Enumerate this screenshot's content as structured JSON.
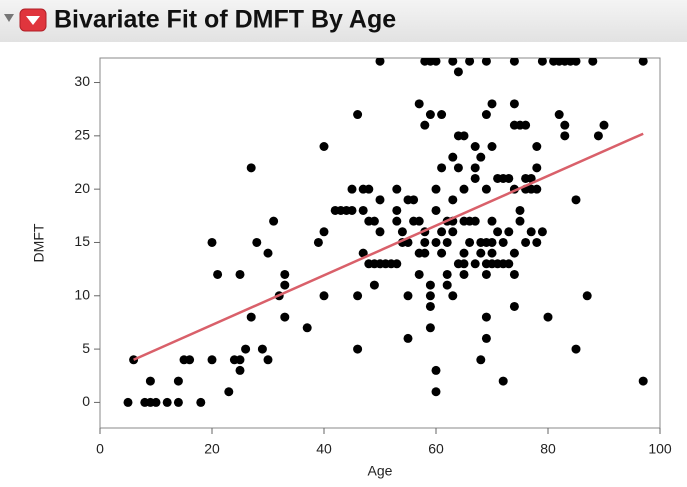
{
  "chart_data": {
    "type": "scatter",
    "title": "Bivariate Fit of DMFT By Age",
    "x_label": "Age",
    "y_label": "DMFT",
    "xlim": [
      0,
      100
    ],
    "ylim": [
      -2.4,
      32.3
    ],
    "xticks": [
      0,
      20,
      40,
      60,
      80,
      100
    ],
    "yticks": [
      0,
      5,
      10,
      15,
      20,
      25,
      30
    ],
    "series": [
      {
        "color": "#000000",
        "x": [
          5,
          6,
          8,
          9,
          9,
          10,
          12,
          14,
          14,
          15,
          16,
          18,
          20,
          20,
          21,
          23,
          24,
          25,
          25,
          25,
          26,
          27,
          27,
          28,
          29,
          30,
          30,
          31,
          32,
          33,
          33,
          33,
          37,
          39,
          40,
          40,
          40,
          42,
          43,
          44,
          45,
          45,
          46,
          46,
          46,
          47,
          47,
          47,
          48,
          48,
          48,
          49,
          49,
          49,
          50,
          50,
          50,
          50,
          51,
          52,
          53,
          53,
          53,
          53,
          54,
          54,
          55,
          55,
          55,
          55,
          56,
          56,
          57,
          57,
          57,
          57,
          58,
          58,
          58,
          58,
          58,
          59,
          59,
          59,
          59,
          59,
          59,
          60,
          60,
          60,
          60,
          60,
          60,
          61,
          61,
          61,
          61,
          62,
          62,
          62,
          62,
          63,
          63,
          63,
          63,
          63,
          63,
          64,
          64,
          64,
          64,
          65,
          65,
          65,
          65,
          65,
          65,
          66,
          66,
          66,
          67,
          67,
          67,
          67,
          67,
          68,
          68,
          68,
          68,
          69,
          69,
          69,
          69,
          69,
          69,
          69,
          69,
          70,
          70,
          70,
          70,
          70,
          70,
          71,
          71,
          71,
          72,
          72,
          72,
          72,
          73,
          73,
          73,
          74,
          74,
          74,
          74,
          74,
          74,
          74,
          75,
          75,
          75,
          76,
          76,
          76,
          76,
          77,
          77,
          77,
          78,
          78,
          78,
          78,
          79,
          79,
          80,
          81,
          82,
          82,
          83,
          83,
          83,
          84,
          85,
          85,
          85,
          87,
          88,
          89,
          90,
          97,
          97
        ],
        "values": [
          0,
          4,
          0,
          0,
          2,
          0,
          0,
          0,
          2,
          4,
          4,
          0,
          4,
          15,
          12,
          1,
          4,
          4,
          3,
          12,
          5,
          8,
          22,
          15,
          5,
          4,
          14,
          17,
          10,
          11,
          12,
          8,
          7,
          15,
          16,
          24,
          10,
          18,
          18,
          18,
          20,
          18,
          10,
          27,
          5,
          20,
          14,
          18,
          13,
          17,
          20,
          13,
          17,
          11,
          13,
          19,
          32,
          16,
          13,
          13,
          17,
          13,
          18,
          20,
          15,
          16,
          15,
          19,
          10,
          6,
          17,
          19,
          14,
          17,
          28,
          12,
          32,
          26,
          16,
          15,
          14,
          27,
          32,
          10,
          11,
          9,
          7,
          32,
          20,
          18,
          15,
          3,
          1,
          14,
          16,
          22,
          27,
          17,
          15,
          12,
          11,
          32,
          23,
          19,
          17,
          16,
          10,
          25,
          22,
          13,
          31,
          25,
          20,
          17,
          14,
          13,
          12,
          32,
          17,
          15,
          24,
          22,
          17,
          21,
          13,
          23,
          15,
          4,
          14,
          32,
          27,
          20,
          15,
          13,
          12,
          8,
          6,
          28,
          24,
          17,
          15,
          14,
          13,
          13,
          16,
          21,
          21,
          2,
          13,
          15,
          21,
          16,
          13,
          32,
          28,
          26,
          20,
          14,
          12,
          9,
          26,
          18,
          17,
          26,
          21,
          20,
          15,
          16,
          21,
          20,
          22,
          24,
          20,
          15,
          16,
          32,
          8,
          32,
          27,
          32,
          25,
          26,
          32,
          32,
          19,
          5,
          32,
          10,
          32,
          25,
          26,
          32,
          2
        ]
      }
    ],
    "fit": {
      "color": "#d9606a",
      "x": [
        6,
        97
      ],
      "values": [
        4,
        25.2
      ]
    }
  }
}
